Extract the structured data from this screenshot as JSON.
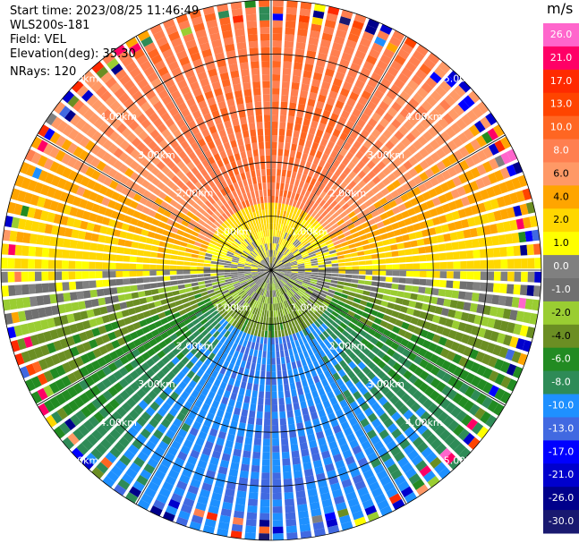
{
  "header": {
    "start_time": "Start time: 2023/08/25 11:46:49",
    "instrument": "WLS200s-181",
    "field": "Field: VEL",
    "elevation": "Elevation(deg): 35.30",
    "nrays": "NRays: 120"
  },
  "colorbar": {
    "unit": "m/s",
    "labels": [
      "26.0",
      "21.0",
      "17.0",
      "13.0",
      "10.0",
      "8.0",
      "6.0",
      "4.0",
      "2.0",
      "1.0",
      "0.0",
      "-1.0",
      "-2.0",
      "-4.0",
      "-6.0",
      "-8.0",
      "-10.0",
      "-13.0",
      "-17.0",
      "-21.0",
      "-26.0",
      "-30.0"
    ],
    "colors": [
      "#ff66cc",
      "#ff0066",
      "#ff2a00",
      "#ff4400",
      "#ff6622",
      "#ff7f50",
      "#ff9966",
      "#ffa500",
      "#ffd700",
      "#ffff00",
      "#808080",
      "#707070",
      "#9acd32",
      "#6b8e23",
      "#228b22",
      "#2e8b57",
      "#1e90ff",
      "#4169e1",
      "#0000ff",
      "#0000cd",
      "#00008b",
      "#191970"
    ]
  },
  "chart_data": {
    "type": "ppi",
    "field": "VEL",
    "units": "m/s",
    "n_rays": 120,
    "elevation_deg": 35.3,
    "max_range_km": 5.0,
    "range_rings_km": [
      1.0,
      2.0,
      3.0,
      4.0,
      5.0
    ],
    "ring_labels": [
      "1.00km",
      "2.00km",
      "3.00km",
      "4.00km",
      "5.00km"
    ],
    "color_levels": [
      -30,
      -26,
      -21,
      -17,
      -13,
      -10,
      -8,
      -6,
      -4,
      -2,
      -1,
      0,
      1,
      2,
      4,
      6,
      8,
      10,
      13,
      17,
      21,
      26,
      30
    ],
    "velocity_pattern": {
      "north_sector_ms": 10.0,
      "east_west_ms": 2.0,
      "near_center_ms": 0.0,
      "south_west_ms": -6.0,
      "south_sector_ms": -10.0
    }
  }
}
